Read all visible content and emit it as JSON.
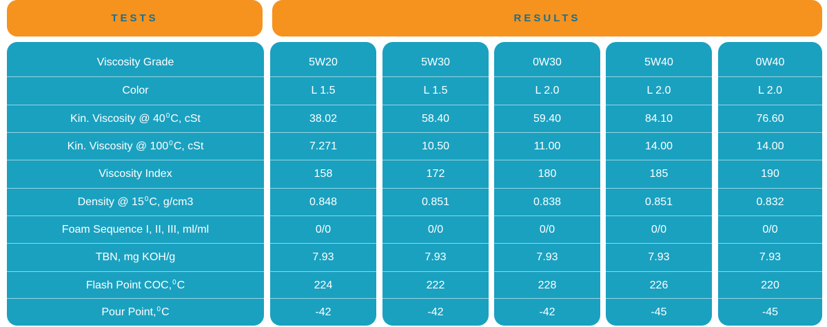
{
  "headers": {
    "tests": "TESTS",
    "results": "RESULTS"
  },
  "tests": [
    "Viscosity Grade",
    "Color",
    "Kin. Viscosity @ 40 ⁰C, cSt",
    "Kin. Viscosity @ 100 ⁰C, cSt",
    "Viscosity Index",
    "Density @ 15 ⁰C, g/cm3",
    "Foam Sequence I, II, III, ml/ml",
    "TBN, mg KOH/g",
    "Flash Point COC, ⁰C",
    "Pour Point,⁰C"
  ],
  "results": [
    [
      "5W20",
      "L 1.5",
      "38.02",
      "7.271",
      "158",
      "0.848",
      "0/0",
      "7.93",
      "224",
      "-42"
    ],
    [
      "5W30",
      "L 1.5",
      "58.40",
      "10.50",
      "172",
      "0.851",
      "0/0",
      "7.93",
      "222",
      "-42"
    ],
    [
      "0W30",
      "L 2.0",
      "59.40",
      "11.00",
      "180",
      "0.838",
      "0/0",
      "7.93",
      "228",
      "-42"
    ],
    [
      "5W40",
      "L 2.0",
      "84.10",
      "14.00",
      "185",
      "0.851",
      "0/0",
      "7.93",
      "226",
      "-45"
    ],
    [
      "0W40",
      "L 2.0",
      "76.60",
      "14.00",
      "190",
      "0.832",
      "0/0",
      "7.93",
      "220",
      "-45"
    ]
  ],
  "colors": {
    "header_bg": "#f6921e",
    "header_text": "#1b6f8e",
    "table_bg": "#1aa1c0",
    "cell_text": "#ffffff"
  }
}
